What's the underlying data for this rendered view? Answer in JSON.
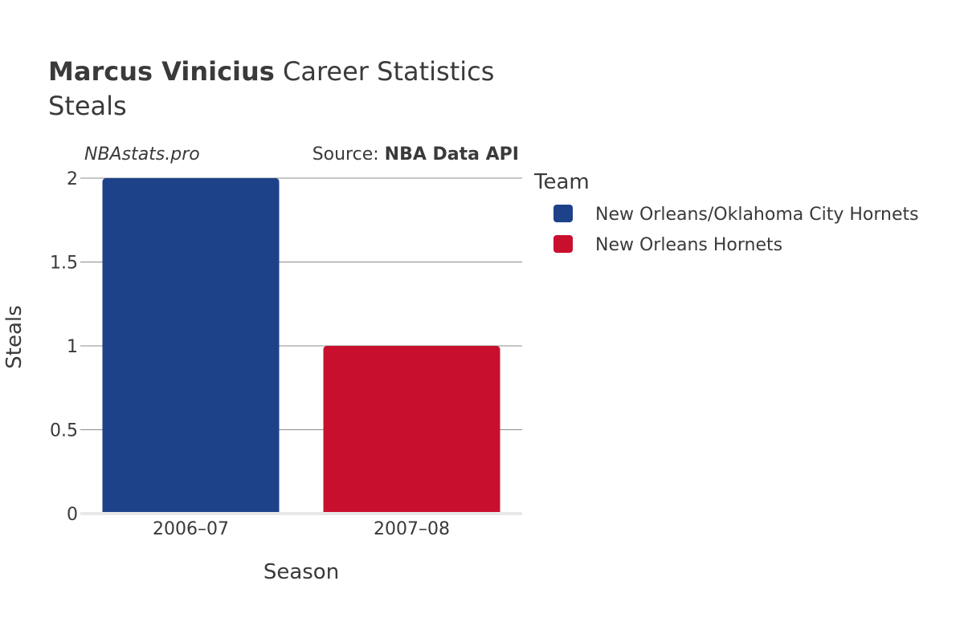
{
  "header": {
    "player_name": "Marcus Vinicius",
    "title_suffix": " Career Statistics",
    "subtitle": "Steals",
    "watermark": "NBAstats.pro",
    "source_prefix": "Source: ",
    "source_name": "NBA Data API"
  },
  "legend": {
    "title": "Team",
    "items": [
      {
        "label": "New Orleans/Oklahoma City Hornets",
        "color": "#1d428a"
      },
      {
        "label": "New Orleans Hornets",
        "color": "#c8102e"
      }
    ]
  },
  "chart_data": {
    "type": "bar",
    "title": "Marcus Vinicius Career Statistics",
    "subtitle": "Steals",
    "xlabel": "Season",
    "ylabel": "Steals",
    "categories": [
      "2006–07",
      "2007–08"
    ],
    "series": [
      {
        "name": "New Orleans/Oklahoma City Hornets",
        "values": [
          2,
          null
        ],
        "color": "#1d428a"
      },
      {
        "name": "New Orleans Hornets",
        "values": [
          null,
          1
        ],
        "color": "#c8102e"
      }
    ],
    "ylim": [
      0,
      2
    ],
    "yticks": [
      {
        "value": 0,
        "label": "0"
      },
      {
        "value": 0.5,
        "label": "0.5"
      },
      {
        "value": 1,
        "label": "1"
      },
      {
        "value": 1.5,
        "label": "1.5"
      },
      {
        "value": 2,
        "label": "2"
      }
    ],
    "grid": true,
    "legend_position": "right"
  }
}
